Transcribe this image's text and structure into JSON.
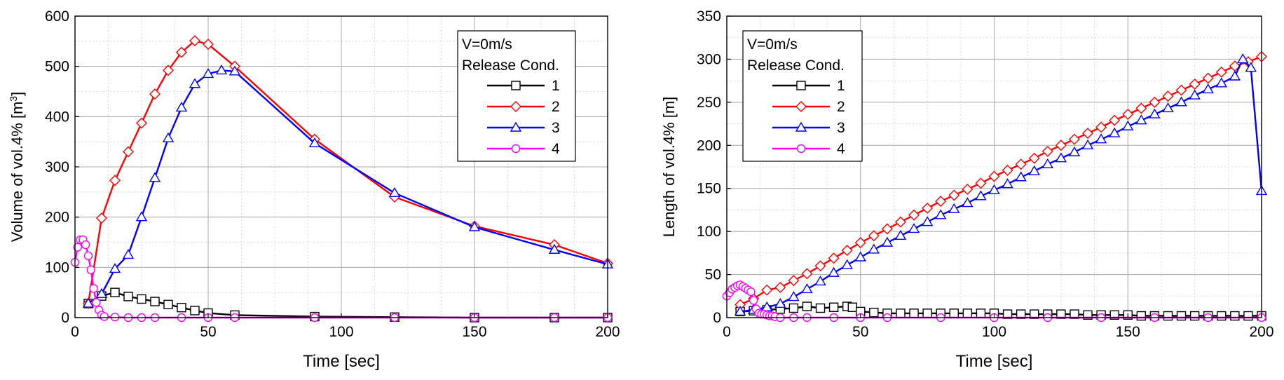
{
  "chart_data": [
    {
      "type": "line",
      "xlabel": "Time [sec]",
      "ylabel": "Volume of vol.4% [m",
      "ylabel_sup": "3",
      "ylabel_end": "]",
      "xlim": [
        0,
        200
      ],
      "ylim": [
        0,
        600
      ],
      "xticks": [
        "0",
        "50",
        "100",
        "150",
        "200"
      ],
      "yticks": [
        "0",
        "100",
        "200",
        "300",
        "400",
        "500",
        "600"
      ],
      "grid": true,
      "legend_position": "top-right",
      "legend_title": [
        "V=0m/s",
        "Release Cond."
      ],
      "series": [
        {
          "name": "1",
          "color": "#000000",
          "marker": "square",
          "points": [
            [
              5,
              28
            ],
            [
              10,
              43
            ],
            [
              15,
              50
            ],
            [
              20,
              42
            ],
            [
              25,
              37
            ],
            [
              30,
              32
            ],
            [
              35,
              26
            ],
            [
              40,
              20
            ],
            [
              45,
              14
            ],
            [
              50,
              9
            ],
            [
              60,
              5
            ],
            [
              90,
              2
            ],
            [
              120,
              1
            ],
            [
              150,
              0
            ],
            [
              180,
              0
            ],
            [
              200,
              0
            ]
          ]
        },
        {
          "name": "2",
          "color": "#ff0000",
          "marker": "diamond",
          "points": [
            [
              5,
              28
            ],
            [
              10,
              198
            ],
            [
              15,
              273
            ],
            [
              20,
              330
            ],
            [
              25,
              387
            ],
            [
              30,
              445
            ],
            [
              35,
              492
            ],
            [
              40,
              528
            ],
            [
              45,
              551
            ],
            [
              50,
              544
            ],
            [
              60,
              500
            ],
            [
              90,
              355
            ],
            [
              120,
              240
            ],
            [
              150,
              182
            ],
            [
              180,
              145
            ],
            [
              200,
              108
            ]
          ]
        },
        {
          "name": "3",
          "color": "#0000ff",
          "marker": "triangle",
          "points": [
            [
              5,
              28
            ],
            [
              10,
              47
            ],
            [
              15,
              97
            ],
            [
              20,
              125
            ],
            [
              25,
              200
            ],
            [
              30,
              278
            ],
            [
              35,
              357
            ],
            [
              40,
              418
            ],
            [
              45,
              465
            ],
            [
              50,
              485
            ],
            [
              55,
              492
            ],
            [
              60,
              490
            ],
            [
              90,
              347
            ],
            [
              120,
              248
            ],
            [
              150,
              180
            ],
            [
              180,
              135
            ],
            [
              200,
              106
            ]
          ]
        },
        {
          "name": "4",
          "color": "#ff00ff",
          "marker": "circle",
          "points": [
            [
              0,
              110
            ],
            [
              1,
              140
            ],
            [
              2,
              155
            ],
            [
              3,
              155
            ],
            [
              4,
              145
            ],
            [
              5,
              123
            ],
            [
              6,
              95
            ],
            [
              7,
              58
            ],
            [
              8,
              30
            ],
            [
              9,
              15
            ],
            [
              10,
              5
            ],
            [
              11,
              2
            ],
            [
              15,
              1
            ],
            [
              20,
              0
            ],
            [
              25,
              0
            ],
            [
              30,
              0
            ],
            [
              40,
              0
            ],
            [
              50,
              0
            ],
            [
              60,
              0
            ],
            [
              90,
              0
            ],
            [
              120,
              0
            ],
            [
              150,
              0
            ],
            [
              180,
              0
            ],
            [
              200,
              0
            ]
          ]
        }
      ]
    },
    {
      "type": "line",
      "xlabel": "Time [sec]",
      "ylabel": "Length of vol.4% [m]",
      "xlim": [
        0,
        200
      ],
      "ylim": [
        0,
        350
      ],
      "xticks": [
        "0",
        "50",
        "100",
        "150",
        "200"
      ],
      "yticks": [
        "0",
        "50",
        "100",
        "150",
        "200",
        "250",
        "300",
        "350"
      ],
      "grid": true,
      "legend_position": "top-left",
      "legend_title": [
        "V=0m/s",
        "Release Cond."
      ],
      "series": [
        {
          "name": "1",
          "color": "#000000",
          "marker": "square",
          "points": [
            [
              5,
              7
            ],
            [
              10,
              8
            ],
            [
              15,
              9
            ],
            [
              20,
              10
            ],
            [
              25,
              11
            ],
            [
              30,
              13
            ],
            [
              35,
              11
            ],
            [
              40,
              12
            ],
            [
              45,
              13
            ],
            [
              47,
              12
            ],
            [
              50,
              7
            ],
            [
              55,
              6
            ],
            [
              60,
              5
            ],
            [
              65,
              5
            ],
            [
              70,
              5
            ],
            [
              75,
              5
            ],
            [
              80,
              5
            ],
            [
              85,
              5
            ],
            [
              90,
              5
            ],
            [
              95,
              5
            ],
            [
              100,
              5
            ],
            [
              105,
              4
            ],
            [
              110,
              4
            ],
            [
              115,
              4
            ],
            [
              120,
              4
            ],
            [
              125,
              4
            ],
            [
              130,
              4
            ],
            [
              135,
              3
            ],
            [
              140,
              3
            ],
            [
              145,
              3
            ],
            [
              150,
              3
            ],
            [
              155,
              2
            ],
            [
              160,
              2
            ],
            [
              165,
              2
            ],
            [
              170,
              2
            ],
            [
              175,
              2
            ],
            [
              180,
              2
            ],
            [
              185,
              2
            ],
            [
              190,
              2
            ],
            [
              195,
              2
            ],
            [
              200,
              2
            ]
          ]
        },
        {
          "name": "2",
          "color": "#ff0000",
          "marker": "diamond",
          "points": [
            [
              5,
              15
            ],
            [
              10,
              22
            ],
            [
              15,
              32
            ],
            [
              20,
              35
            ],
            [
              25,
              43
            ],
            [
              30,
              51
            ],
            [
              35,
              60
            ],
            [
              40,
              69
            ],
            [
              45,
              78
            ],
            [
              50,
              87
            ],
            [
              55,
              95
            ],
            [
              60,
              103
            ],
            [
              65,
              111
            ],
            [
              70,
              119
            ],
            [
              75,
              127
            ],
            [
              80,
              135
            ],
            [
              85,
              142
            ],
            [
              90,
              149
            ],
            [
              95,
              156
            ],
            [
              100,
              164
            ],
            [
              105,
              171
            ],
            [
              110,
              178
            ],
            [
              115,
              185
            ],
            [
              120,
              193
            ],
            [
              125,
              200
            ],
            [
              130,
              207
            ],
            [
              135,
              214
            ],
            [
              140,
              221
            ],
            [
              145,
              229
            ],
            [
              150,
              236
            ],
            [
              155,
              243
            ],
            [
              160,
              250
            ],
            [
              165,
              257
            ],
            [
              170,
              264
            ],
            [
              175,
              271
            ],
            [
              180,
              278
            ],
            [
              185,
              285
            ],
            [
              190,
              292
            ],
            [
              195,
              297
            ],
            [
              200,
              303
            ]
          ]
        },
        {
          "name": "3",
          "color": "#0000ff",
          "marker": "triangle",
          "points": [
            [
              5,
              7
            ],
            [
              10,
              9
            ],
            [
              15,
              12
            ],
            [
              20,
              16
            ],
            [
              25,
              24
            ],
            [
              30,
              33
            ],
            [
              35,
              42
            ],
            [
              40,
              52
            ],
            [
              45,
              61
            ],
            [
              50,
              70
            ],
            [
              55,
              79
            ],
            [
              60,
              87
            ],
            [
              65,
              95
            ],
            [
              70,
              103
            ],
            [
              75,
              111
            ],
            [
              80,
              119
            ],
            [
              85,
              126
            ],
            [
              90,
              133
            ],
            [
              95,
              141
            ],
            [
              100,
              148
            ],
            [
              105,
              155
            ],
            [
              110,
              163
            ],
            [
              115,
              170
            ],
            [
              120,
              178
            ],
            [
              125,
              185
            ],
            [
              130,
              192
            ],
            [
              135,
              200
            ],
            [
              140,
              207
            ],
            [
              145,
              214
            ],
            [
              150,
              222
            ],
            [
              155,
              229
            ],
            [
              160,
              236
            ],
            [
              165,
              243
            ],
            [
              170,
              250
            ],
            [
              175,
              258
            ],
            [
              180,
              265
            ],
            [
              185,
              272
            ],
            [
              190,
              280
            ],
            [
              193,
              300
            ],
            [
              196,
              290
            ],
            [
              200,
              147
            ]
          ]
        },
        {
          "name": "4",
          "color": "#ff00ff",
          "marker": "circle",
          "points": [
            [
              0,
              25
            ],
            [
              1,
              29
            ],
            [
              2,
              33
            ],
            [
              3,
              35
            ],
            [
              4,
              37
            ],
            [
              5,
              38
            ],
            [
              6,
              36
            ],
            [
              7,
              34
            ],
            [
              8,
              32
            ],
            [
              9,
              30
            ],
            [
              10,
              20
            ],
            [
              11,
              10
            ],
            [
              12,
              5
            ],
            [
              13,
              4
            ],
            [
              14,
              4
            ],
            [
              15,
              3
            ],
            [
              16,
              2
            ],
            [
              17,
              2
            ],
            [
              18,
              1
            ],
            [
              20,
              0
            ],
            [
              25,
              0
            ],
            [
              30,
              0
            ],
            [
              40,
              0
            ],
            [
              50,
              0
            ],
            [
              60,
              0
            ],
            [
              80,
              0
            ],
            [
              100,
              0
            ],
            [
              120,
              0
            ],
            [
              140,
              0
            ],
            [
              160,
              0
            ],
            [
              180,
              0
            ],
            [
              200,
              0
            ]
          ]
        }
      ]
    }
  ]
}
